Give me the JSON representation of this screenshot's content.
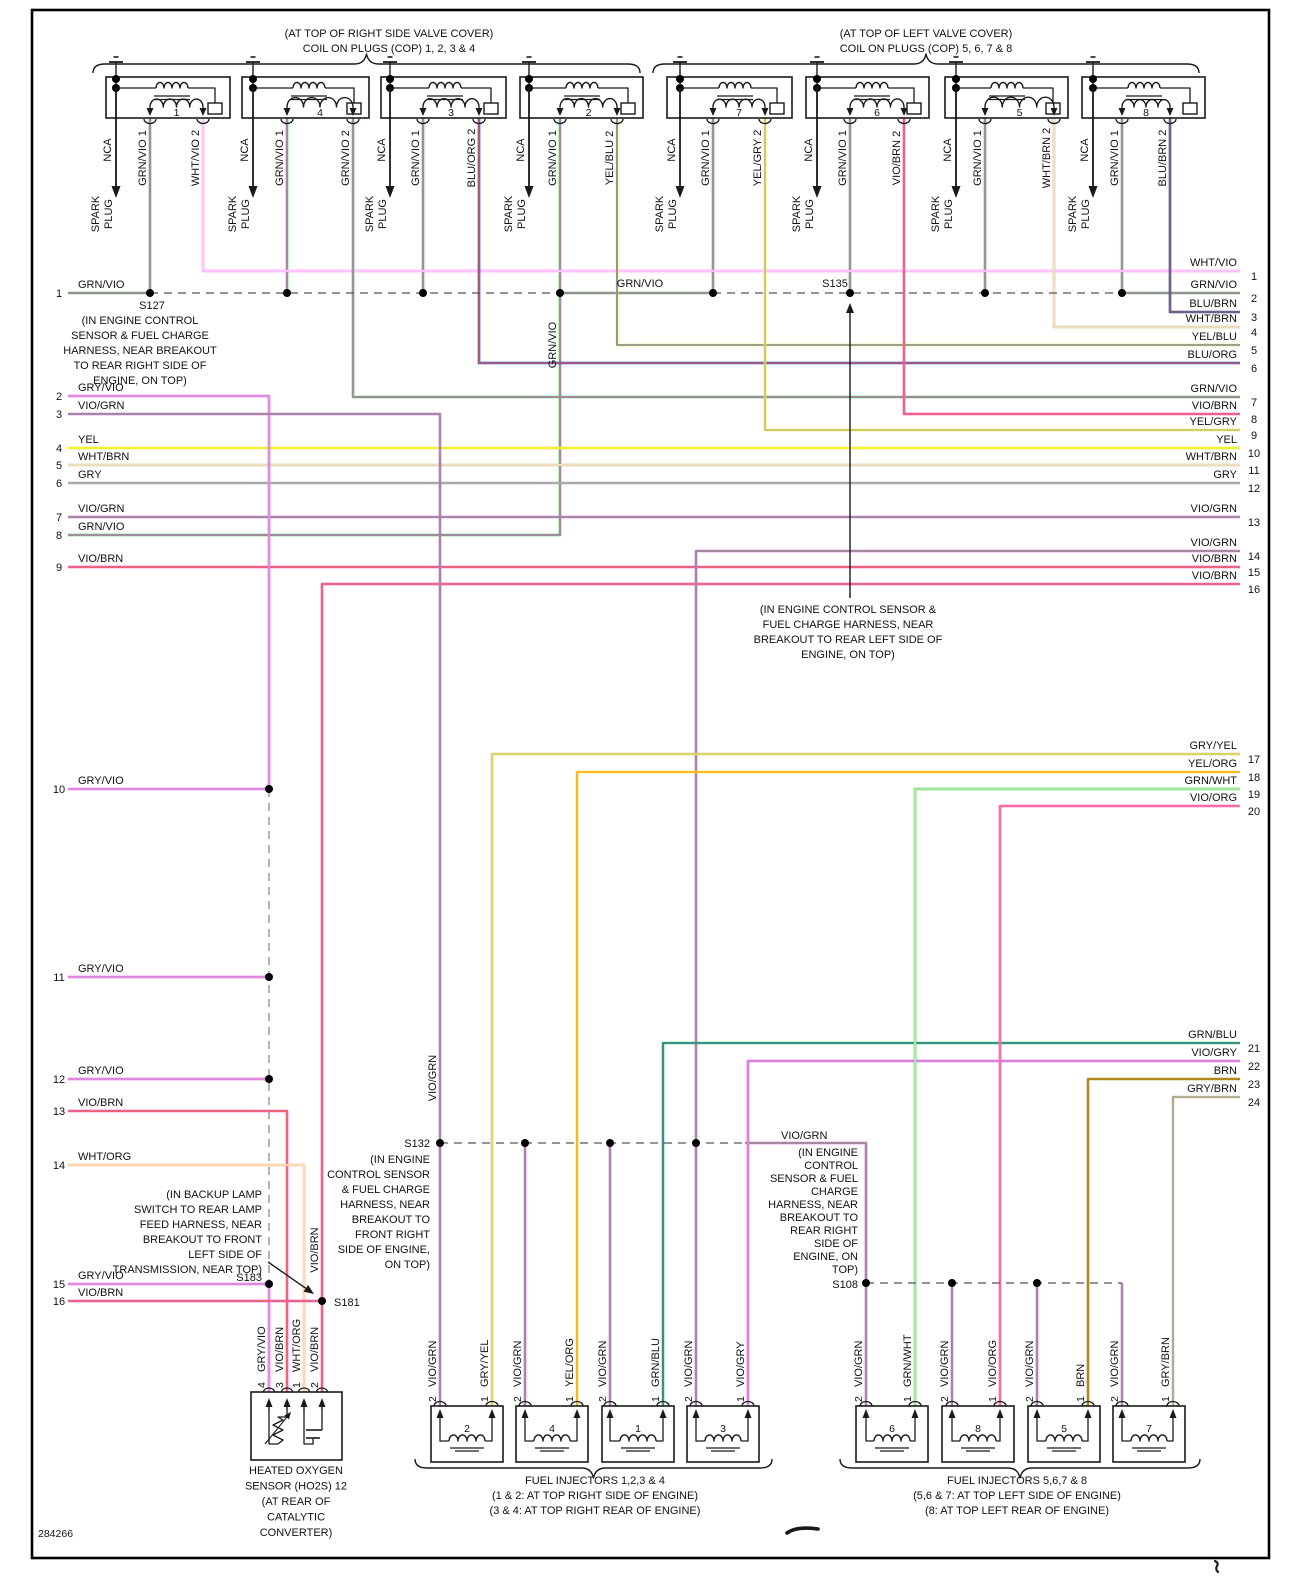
{
  "page": {
    "footer_code": "284266",
    "ink": "#1a1a1a",
    "background": "#ffffff"
  },
  "banks": [
    {
      "note": "(AT TOP OF RIGHT SIDE VALVE COVER)",
      "title": "COIL ON PLUGS (COP) 1, 2, 3 & 4"
    },
    {
      "note": "(AT TOP OF LEFT VALVE COVER)",
      "title": "COIL ON PLUGS (COP) 5, 6, 7 & 8"
    }
  ],
  "coil_labels": {
    "nca": "NCA",
    "spark1": "SPARK",
    "spark2": "PLUG",
    "primary": "GRN/VIO 1"
  },
  "coils": [
    {
      "num": "1",
      "wire2": "WHT/VIO 2",
      "wire2_code": "WHT/VIO"
    },
    {
      "num": "4",
      "wire2": "GRN/VIO 2",
      "wire2_code": "GRN/VIO"
    },
    {
      "num": "3",
      "wire2": "BLU/ORG 2",
      "wire2_code": "BLU/ORG"
    },
    {
      "num": "2",
      "wire2": "YEL/BLU 2",
      "wire2_code": "YEL/BLU"
    },
    {
      "num": "7",
      "wire2": "YEL/GRY 2",
      "wire2_code": "YEL/GRY"
    },
    {
      "num": "6",
      "wire2": "VIO/BRN 2",
      "wire2_code": "VIO/BRN"
    },
    {
      "num": "5",
      "wire2": "WHT/BRN 2",
      "wire2_code": "WHT/BRN"
    },
    {
      "num": "8",
      "wire2": "BLU/BRN 2",
      "wire2_code": "BLU/BRN"
    }
  ],
  "left_rows": [
    {
      "n": "1",
      "label": "GRN/VIO"
    },
    {
      "n": "2",
      "label": "GRY/VIO"
    },
    {
      "n": "3",
      "label": "VIO/GRN"
    },
    {
      "n": "4",
      "label": "YEL"
    },
    {
      "n": "5",
      "label": "WHT/BRN"
    },
    {
      "n": "6",
      "label": "GRY"
    },
    {
      "n": "7",
      "label": "VIO/GRN"
    },
    {
      "n": "8",
      "label": "GRN/VIO"
    },
    {
      "n": "9",
      "label": "VIO/BRN"
    },
    {
      "n": "10",
      "label": "GRY/VIO"
    },
    {
      "n": "11",
      "label": "GRY/VIO"
    },
    {
      "n": "12",
      "label": "GRY/VIO"
    },
    {
      "n": "13",
      "label": "VIO/BRN"
    },
    {
      "n": "14",
      "label": "WHT/ORG"
    },
    {
      "n": "15",
      "label": "GRY/VIO"
    },
    {
      "n": "16",
      "label": "VIO/BRN"
    }
  ],
  "right_rows": [
    {
      "n": "1",
      "label": "WHT/VIO"
    },
    {
      "n": "2",
      "label": "GRN/VIO"
    },
    {
      "n": "3",
      "label": "BLU/BRN"
    },
    {
      "n": "4",
      "label": "WHT/BRN"
    },
    {
      "n": "5",
      "label": "YEL/BLU"
    },
    {
      "n": "6",
      "label": "BLU/ORG"
    },
    {
      "n": "7",
      "label": "GRN/VIO"
    },
    {
      "n": "8",
      "label": "VIO/BRN"
    },
    {
      "n": "9",
      "label": "YEL/GRY"
    },
    {
      "n": "10",
      "label": "YEL"
    },
    {
      "n": "11",
      "label": "WHT/BRN"
    },
    {
      "n": "12",
      "label": "GRY"
    },
    {
      "n": "13",
      "label": "VIO/GRN"
    },
    {
      "n": "14",
      "label": "VIO/GRN"
    },
    {
      "n": "15",
      "label": "VIO/BRN"
    },
    {
      "n": "16",
      "label": "VIO/BRN"
    },
    {
      "n": "17",
      "label": "GRY/YEL"
    },
    {
      "n": "18",
      "label": "YEL/ORG"
    },
    {
      "n": "19",
      "label": "GRN/WHT"
    },
    {
      "n": "20",
      "label": "VIO/ORG"
    },
    {
      "n": "21",
      "label": "GRN/BLU"
    },
    {
      "n": "22",
      "label": "VIO/GRY"
    },
    {
      "n": "23",
      "label": "BRN"
    },
    {
      "n": "24",
      "label": "GRY/BRN"
    }
  ],
  "bus_label": "GRN/VIO",
  "riser_labels": {
    "grnvio_down": "GRN/VIO",
    "viogrn_up": "VIO/GRN",
    "viobrn_down": "VIO/BRN"
  },
  "splices": {
    "s127": {
      "id": "S127",
      "note": [
        "(IN ENGINE CONTROL",
        "SENSOR & FUEL CHARGE",
        "HARNESS, NEAR BREAKOUT",
        "TO REAR RIGHT SIDE OF",
        "ENGINE, ON TOP)"
      ]
    },
    "s135": {
      "id": "S135",
      "note": [
        "(IN ENGINE CONTROL SENSOR &",
        "FUEL CHARGE HARNESS, NEAR",
        "BREAKOUT TO REAR LEFT SIDE OF",
        "ENGINE, ON TOP)"
      ]
    },
    "s132": {
      "id": "S132",
      "note": [
        "(IN ENGINE",
        "CONTROL SENSOR",
        "& FUEL CHARGE",
        "HARNESS, NEAR",
        "BREAKOUT TO",
        "FRONT RIGHT",
        "SIDE OF ENGINE,",
        "ON TOP)"
      ]
    },
    "s183": {
      "id": "S183",
      "note": [
        "(IN BACKUP LAMP",
        "SWITCH TO REAR LAMP",
        "FEED HARNESS, NEAR",
        "BREAKOUT TO FRONT",
        "LEFT SIDE OF",
        "TRANSMISSION, NEAR TOP)"
      ]
    },
    "s181": {
      "id": "S181"
    },
    "s108": {
      "id": "S108",
      "feed_label": "VIO/GRN",
      "note": [
        "(IN ENGINE",
        "CONTROL",
        "SENSOR & FUEL",
        "CHARGE",
        "HARNESS, NEAR",
        "BREAKOUT TO",
        "REAR RIGHT",
        "SIDE OF",
        "ENGINE, ON",
        "TOP)"
      ]
    }
  },
  "pin_numbers": [
    "2",
    "1"
  ],
  "injector_banks": [
    {
      "caption": [
        "FUEL INJECTORS 1,2,3 & 4",
        "(1 & 2: AT TOP RIGHT SIDE OF ENGINE)",
        "(3 & 4: AT TOP RIGHT REAR OF ENGINE)"
      ],
      "units": [
        {
          "num": "2",
          "pin2_label": "VIO/GRN",
          "pin1_label": "GRY/YEL"
        },
        {
          "num": "4",
          "pin2_label": "VIO/GRN",
          "pin1_label": "YEL/ORG"
        },
        {
          "num": "1",
          "pin2_label": "VIO/GRN",
          "pin1_label": "GRN/BLU"
        },
        {
          "num": "3",
          "pin2_label": "VIO/GRN",
          "pin1_label": "VIO/GRY"
        }
      ]
    },
    {
      "caption": [
        "FUEL INJECTORS 5,6,7 & 8",
        "(5,6 & 7: AT TOP LEFT SIDE OF ENGINE)",
        "(8: AT TOP LEFT REAR OF ENGINE)"
      ],
      "units": [
        {
          "num": "6",
          "pin2_label": "VIO/GRN",
          "pin1_label": "GRN/WHT"
        },
        {
          "num": "8",
          "pin2_label": "VIO/GRN",
          "pin1_label": "VIO/ORG"
        },
        {
          "num": "5",
          "pin2_label": "VIO/GRN",
          "pin1_label": "BRN"
        },
        {
          "num": "7",
          "pin2_label": "VIO/GRN",
          "pin1_label": "GRY/BRN"
        }
      ]
    }
  ],
  "ho2s": {
    "caption": [
      "HEATED OXYGEN",
      "SENSOR (HO2S) 12",
      "(AT REAR OF",
      "CATALYTIC",
      "CONVERTER)"
    ],
    "pins": [
      {
        "n": "4",
        "label": "GRY/VIO"
      },
      {
        "n": "3",
        "label": "VIO/BRN"
      },
      {
        "n": "1",
        "label": "WHT/ORG"
      },
      {
        "n": "2",
        "label": "VIO/BRN"
      }
    ]
  },
  "wire_colors": {
    "GRN/VIO": [
      "#3ecc3e",
      "#ff4dff"
    ],
    "WHT/VIO": [
      "#ff85ff",
      "#ffffff"
    ],
    "GRY/VIO": [
      "#f04df0",
      "#c9c9c9"
    ],
    "VIO/GRN": [
      "#ff4dff",
      "#3ecc3e"
    ],
    "VIO/BRN": [
      "#ff3dd6",
      "#d98a2b"
    ],
    "VIO/ORG": [
      "#ff4dff",
      "#ff8c29"
    ],
    "VIO/GRY": [
      "#ff4dff",
      "#b3b3b3"
    ],
    "YEL": [
      "#f5ee33"
    ],
    "WHT/BRN": [
      "#d4b878",
      "#ffffff"
    ],
    "GRY": [
      "#a9a9a9"
    ],
    "WHT/ORG": [
      "#f7b06a",
      "#ffffff"
    ],
    "GRN/WHT": [
      "#3ecc3e",
      "#ffffff"
    ],
    "GRN/BLU": [
      "#3ecc3e",
      "#3a55e0"
    ],
    "YEL/BLU": [
      "#f5ee33",
      "#3a55e0"
    ],
    "YEL/GRY": [
      "#f5ee33",
      "#a9a9a9"
    ],
    "YEL/ORG": [
      "#f7d82a",
      "#ff9a26"
    ],
    "GRY/YEL": [
      "#c9c177",
      "#f0e84a"
    ],
    "GRY/BRN": [
      "#cfc091",
      "#9a9a9a"
    ],
    "BLU/ORG": [
      "#2f3bd9",
      "#ff7733"
    ],
    "BLU/BRN": [
      "#2f3bd9",
      "#b8860b"
    ],
    "BRN": [
      "#b0871a"
    ]
  }
}
